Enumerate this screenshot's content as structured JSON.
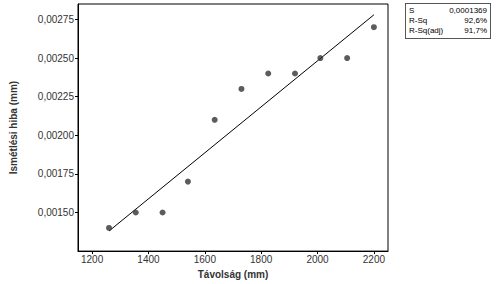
{
  "chart_data": {
    "type": "scatter",
    "x_label": "Távolság (mm)",
    "y_label": "Ismétlési hiba (mm)",
    "series": [
      {
        "type": "scatter",
        "marker": "circle",
        "color": "#333333",
        "x": [
          1260,
          1355,
          1450,
          1540,
          1635,
          1730,
          1825,
          1920,
          2010,
          2105,
          2200
        ],
        "values": [
          0.0014,
          0.0015,
          0.0015,
          0.0017,
          0.0021,
          0.0023,
          0.0024,
          0.0024,
          0.0025,
          0.0025,
          0.0027
        ]
      },
      {
        "type": "line",
        "line_style": "solid",
        "color": "#000000",
        "x": [
          1260,
          2200
        ],
        "values": [
          0.00138,
          0.00278
        ]
      }
    ],
    "xlim": [
      1150,
      2250
    ],
    "xticks": [
      1200,
      1400,
      1600,
      1800,
      2000,
      2200
    ],
    "ylim": [
      0.00125,
      0.00285
    ],
    "yticks": [
      {
        "value": 0.0015,
        "label": "0,00150"
      },
      {
        "value": 0.00175,
        "label": "0,00175"
      },
      {
        "value": 0.002,
        "label": "0,00200"
      },
      {
        "value": 0.00225,
        "label": "0,00225"
      },
      {
        "value": 0.0025,
        "label": "0,00250"
      },
      {
        "value": 0.00275,
        "label": "0,00275"
      }
    ],
    "grid": false,
    "stats": [
      {
        "label": "S",
        "value": "0,0001369"
      },
      {
        "label": "R-Sq",
        "value": "92,6%"
      },
      {
        "label": "R-Sq(adj)",
        "value": "91,7%"
      }
    ]
  }
}
